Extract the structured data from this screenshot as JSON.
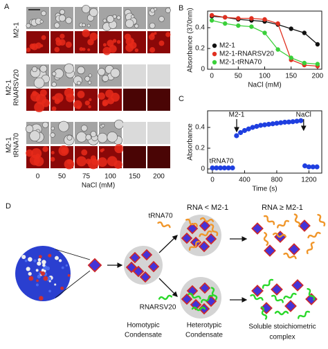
{
  "panel_a": {
    "label": "A",
    "rows": [
      [
        "M2-1"
      ],
      [
        "M2-1",
        "RNARSV20"
      ],
      [
        "M2-1",
        "tRNA70"
      ]
    ],
    "columns": [
      "0",
      "50",
      "75",
      "100",
      "150",
      "200"
    ],
    "xlabel": "NaCl (mM)"
  },
  "chart_data": [
    {
      "panel": "B",
      "type": "line",
      "x": [
        0,
        25,
        50,
        75,
        100,
        125,
        150,
        175,
        200
      ],
      "series": [
        {
          "name": "M2-1",
          "color": "#111111",
          "values": [
            0.51,
            0.5,
            0.48,
            0.47,
            0.46,
            0.43,
            0.39,
            0.35,
            0.24
          ]
        },
        {
          "name": "M2-1-RNARSV20",
          "color": "#e03020",
          "values": [
            0.52,
            0.5,
            0.49,
            0.49,
            0.48,
            0.44,
            0.09,
            0.04,
            0.03
          ]
        },
        {
          "name": "M2-1-tRNA70",
          "color": "#3ad03a",
          "values": [
            0.47,
            0.44,
            0.42,
            0.41,
            0.35,
            0.19,
            0.11,
            0.06,
            0.05
          ]
        }
      ],
      "xlim": [
        -8,
        208
      ],
      "ylim": [
        0,
        0.56
      ],
      "xticks": [
        0,
        50,
        100,
        150,
        200
      ],
      "yticks": [
        0,
        0.2,
        0.4
      ],
      "xlabel": "NaCl (mM)",
      "ylabel": "Absorbance (370nm)",
      "legend": "lower left"
    },
    {
      "panel": "C",
      "type": "scatter",
      "x": [
        0,
        50,
        100,
        150,
        200,
        250,
        300,
        350,
        400,
        450,
        500,
        550,
        600,
        650,
        700,
        750,
        800,
        850,
        900,
        950,
        1000,
        1050,
        1100,
        1150,
        1200,
        1250,
        1300
      ],
      "series": [
        {
          "color": "#1f3fe0",
          "values": [
            0.01,
            0.01,
            0.01,
            0.01,
            0.01,
            0.01,
            0.32,
            0.35,
            0.37,
            0.385,
            0.4,
            0.41,
            0.42,
            0.425,
            0.43,
            0.435,
            0.44,
            0.445,
            0.45,
            0.452,
            0.455,
            0.46,
            0.465,
            0.03,
            0.02,
            0.02,
            0.02
          ]
        }
      ],
      "xlim": [
        -60,
        1360
      ],
      "ylim": [
        -0.04,
        0.56
      ],
      "xticks": [
        0,
        400,
        800,
        1200
      ],
      "yticks": [
        0,
        0.2,
        0.4
      ],
      "xlabel": "Time (s)",
      "ylabel": "Absorbance",
      "annotations": [
        "M2-1",
        "NaCl",
        "tRNA70"
      ]
    }
  ],
  "panel_d": {
    "label": "D",
    "trna": "tRNA70",
    "rna_less": "RNA < M2-1",
    "rna_geq": "RNA ≥ M2-1",
    "rnarsv": "RNARSV20",
    "homotypic": [
      "Homotypic",
      "Condensate"
    ],
    "heterotypic": [
      "Heterotypic",
      "Condensate"
    ],
    "soluble": [
      "Soluble stoichiometric",
      "complex"
    ]
  }
}
